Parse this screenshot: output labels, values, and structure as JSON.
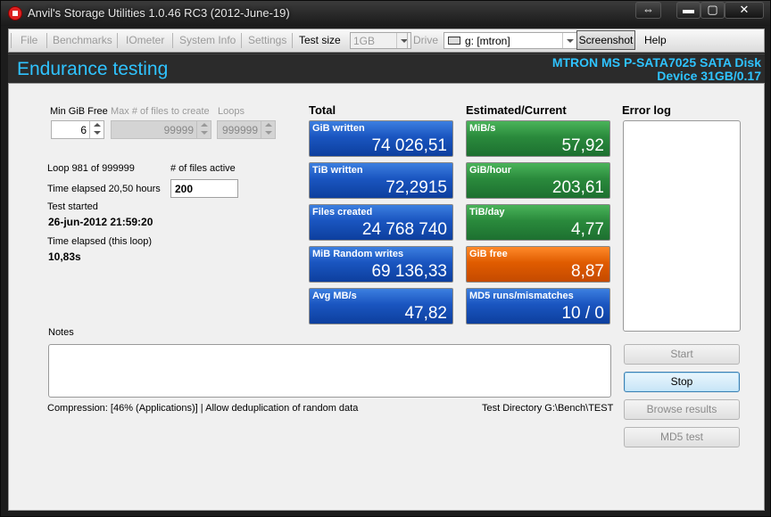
{
  "window": {
    "title": "Anvil's Storage Utilities 1.0.46 RC3 (2012-June-19)"
  },
  "menu": {
    "items": [
      "File",
      "Benchmarks",
      "IOmeter",
      "System Info",
      "Settings"
    ],
    "test_size_label": "Test size",
    "test_size_value": "1GB",
    "drive_label": "Drive",
    "drive_value": "g: [mtron]",
    "screenshot_label": "Screenshot",
    "help_label": "Help"
  },
  "header": {
    "title": "Endurance testing",
    "device_name": "MTRON MS P-SATA7025 SATA Disk",
    "device_info": "Device 31GB/0.17"
  },
  "settings": {
    "min_gib_free_label": "Min GiB Free",
    "min_gib_free_value": "6",
    "max_files_label": "Max # of files to create",
    "max_files_value": "99999",
    "loops_label": "Loops",
    "loops_value": "999999"
  },
  "status": {
    "loop_text": "Loop 981 of 999999",
    "files_active_label": "# of files active",
    "files_active_value": "200",
    "time_elapsed": "Time elapsed 20,50 hours",
    "test_started_label": "Test started",
    "test_started_value": "26-jun-2012 21:59:20",
    "loop_elapsed_label": "Time elapsed (this loop)",
    "loop_elapsed_value": "10,83s"
  },
  "total": {
    "heading": "Total",
    "tiles": [
      {
        "label": "GiB written",
        "value": "74 026,51"
      },
      {
        "label": "TiB written",
        "value": "72,2915"
      },
      {
        "label": "Files created",
        "value": "24 768 740"
      },
      {
        "label": "MiB Random writes",
        "value": "69 136,33"
      },
      {
        "label": "Avg MB/s",
        "value": "47,82"
      }
    ]
  },
  "estimated": {
    "heading": "Estimated/Current",
    "tiles": [
      {
        "label": "MiB/s",
        "value": "57,92"
      },
      {
        "label": "GiB/hour",
        "value": "203,61"
      },
      {
        "label": "TiB/day",
        "value": "4,77"
      },
      {
        "label": "GiB free",
        "value": "8,87"
      },
      {
        "label": "MD5 runs/mismatches",
        "value": "10 / 0"
      }
    ]
  },
  "error_log": {
    "heading": "Error log"
  },
  "notes": {
    "label": "Notes"
  },
  "footer": {
    "compression": "Compression: [46% (Applications)] | Allow deduplication of random data",
    "test_directory": "Test Directory G:\\Bench\\TEST"
  },
  "buttons": {
    "start": "Start",
    "stop": "Stop",
    "browse": "Browse results",
    "md5": "MD5 test"
  },
  "colors": {
    "accent": "#2fc3ff",
    "tile_blue": "#1a55c0",
    "tile_green": "#2a8a3c",
    "tile_orange": "#e05c00"
  }
}
